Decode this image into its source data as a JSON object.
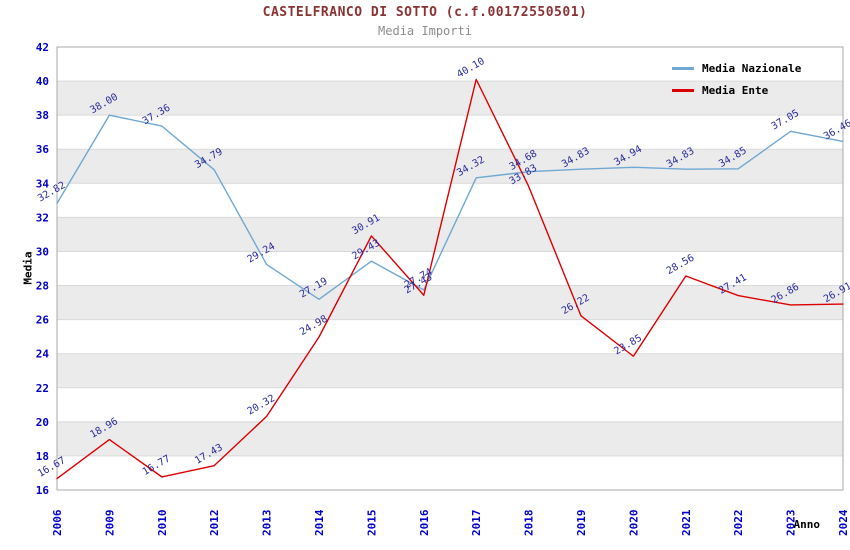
{
  "title": "CASTELFRANCO DI SOTTO (c.f.00172550501)",
  "subtitle": "Media Importi",
  "axes": {
    "y_label": "Media",
    "x_label": "Anno"
  },
  "legend": [
    {
      "label": "Media Nazionale",
      "color": "#6fa8d2"
    },
    {
      "label": "Media Ente",
      "color": "#dd0000"
    }
  ],
  "colors": {
    "band_gray": "#ebebeb",
    "band_white": "#ffffff",
    "grid_line": "#d9d9d9",
    "frame": "#aaaaaa",
    "tick_label": "#0000cd",
    "data_label": "#2a2a9e",
    "title": "#8b3232",
    "subtitle": "#8c8c8c"
  },
  "chart_data": {
    "type": "line",
    "categories": [
      "2006",
      "2009",
      "2010",
      "2012",
      "2013",
      "2014",
      "2015",
      "2016",
      "2017",
      "2018",
      "2019",
      "2020",
      "2021",
      "2022",
      "2023",
      "2024"
    ],
    "series": [
      {
        "name": "Media Nazionale",
        "color": "#6fa8d2",
        "values": [
          32.82,
          38.0,
          37.36,
          34.79,
          29.24,
          27.19,
          29.43,
          27.74,
          34.32,
          34.68,
          34.83,
          34.94,
          34.83,
          34.85,
          37.05,
          36.46
        ]
      },
      {
        "name": "Media Ente",
        "color": "#dd0000",
        "values": [
          16.67,
          18.96,
          16.77,
          17.43,
          20.32,
          24.98,
          30.91,
          27.43,
          40.1,
          33.83,
          26.22,
          23.85,
          28.56,
          27.41,
          26.86,
          26.91
        ]
      }
    ],
    "title": "CASTELFRANCO DI SOTTO (c.f.00172550501)",
    "subtitle": "Media Importi",
    "xlabel": "Anno",
    "ylabel": "Media",
    "ylim": [
      16,
      42
    ],
    "ytick_step": 2,
    "grid": true,
    "legend_position": "top-right",
    "value_label_decimals": 2,
    "value_label_rotation": -30
  }
}
